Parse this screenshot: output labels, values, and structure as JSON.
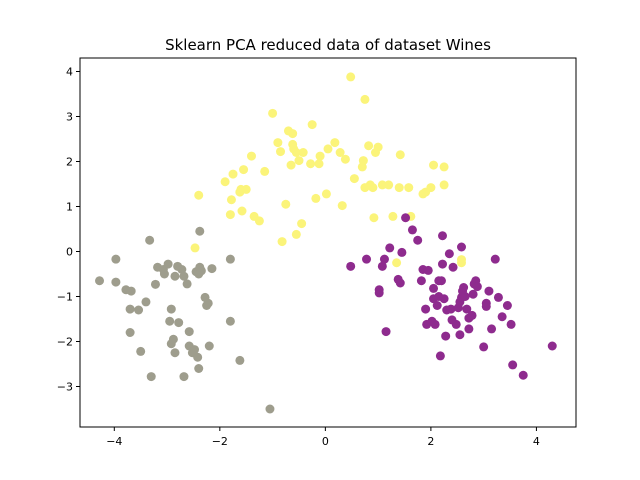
{
  "chart_data": {
    "type": "scatter",
    "title": "Sklearn PCA reduced data of dataset Wines",
    "xlabel": "",
    "ylabel": "",
    "xlim": [
      -4.65,
      4.75
    ],
    "ylim": [
      -3.9,
      4.3
    ],
    "xticks": [
      -4,
      -2,
      0,
      2,
      4
    ],
    "yticks": [
      -3,
      -2,
      -1,
      0,
      1,
      2,
      3,
      4
    ],
    "xtick_labels": [
      "−4",
      "−2",
      "0",
      "2",
      "4"
    ],
    "ytick_labels": [
      "−3",
      "−2",
      "−1",
      "0",
      "1",
      "2",
      "3",
      "4"
    ],
    "grid": false,
    "legend": false,
    "series": [
      {
        "color": "#9e9d8d",
        "points": [
          [
            -4.28,
            -0.65
          ],
          [
            -3.97,
            -0.68
          ],
          [
            -3.97,
            -0.17
          ],
          [
            -3.78,
            -0.85
          ],
          [
            -3.7,
            -1.28
          ],
          [
            -3.68,
            -0.88
          ],
          [
            -3.7,
            -1.8
          ],
          [
            -3.54,
            -1.3
          ],
          [
            -3.5,
            -2.22
          ],
          [
            -3.4,
            -1.12
          ],
          [
            -3.33,
            0.25
          ],
          [
            -3.3,
            -2.78
          ],
          [
            -3.22,
            -0.73
          ],
          [
            -3.18,
            -0.35
          ],
          [
            -3.07,
            -0.4
          ],
          [
            -3.05,
            -0.5
          ],
          [
            -2.98,
            -0.28
          ],
          [
            -2.95,
            -1.55
          ],
          [
            -2.92,
            -1.28
          ],
          [
            -2.92,
            -2.05
          ],
          [
            -2.88,
            -1.95
          ],
          [
            -2.85,
            -0.55
          ],
          [
            -2.85,
            -2.25
          ],
          [
            -2.8,
            -0.33
          ],
          [
            -2.78,
            -1.58
          ],
          [
            -2.72,
            -0.4
          ],
          [
            -2.68,
            -0.55
          ],
          [
            -2.68,
            -2.78
          ],
          [
            -2.62,
            -0.72
          ],
          [
            -2.58,
            -1.78
          ],
          [
            -2.58,
            -2.1
          ],
          [
            -2.52,
            -2.25
          ],
          [
            -2.48,
            -2.18
          ],
          [
            -2.45,
            -0.45
          ],
          [
            -2.42,
            -2.35
          ],
          [
            -2.4,
            -0.5
          ],
          [
            -2.4,
            -2.6
          ],
          [
            -2.38,
            -0.35
          ],
          [
            -2.35,
            -0.43
          ],
          [
            -2.38,
            0.45
          ],
          [
            -2.28,
            -1.02
          ],
          [
            -2.25,
            -1.2
          ],
          [
            -2.22,
            -1.15
          ],
          [
            -2.2,
            -2.1
          ],
          [
            -2.15,
            -0.38
          ],
          [
            -1.8,
            -1.55
          ],
          [
            -1.8,
            -0.17
          ],
          [
            -1.62,
            -2.42
          ],
          [
            -1.05,
            -3.5
          ]
        ]
      },
      {
        "color": "#fbf47a",
        "points": [
          [
            -2.47,
            0.08
          ],
          [
            -2.4,
            1.25
          ],
          [
            -1.9,
            1.55
          ],
          [
            -1.8,
            0.82
          ],
          [
            -1.78,
            1.15
          ],
          [
            -1.75,
            1.72
          ],
          [
            -1.62,
            1.32
          ],
          [
            -1.6,
            1.38
          ],
          [
            -1.58,
            0.9
          ],
          [
            -1.55,
            1.82
          ],
          [
            -1.5,
            1.38
          ],
          [
            -1.4,
            2.12
          ],
          [
            -1.35,
            0.78
          ],
          [
            -1.25,
            0.68
          ],
          [
            -1.15,
            1.78
          ],
          [
            -1.0,
            3.07
          ],
          [
            -0.9,
            2.42
          ],
          [
            -0.85,
            2.22
          ],
          [
            -0.82,
            0.22
          ],
          [
            -0.75,
            1.05
          ],
          [
            -0.7,
            2.68
          ],
          [
            -0.65,
            1.92
          ],
          [
            -0.62,
            2.62
          ],
          [
            -0.62,
            2.38
          ],
          [
            -0.6,
            2.28
          ],
          [
            -0.55,
            0.38
          ],
          [
            -0.55,
            2.2
          ],
          [
            -0.5,
            2.02
          ],
          [
            -0.45,
            0.62
          ],
          [
            -0.42,
            2.2
          ],
          [
            -0.28,
            1.95
          ],
          [
            -0.25,
            2.82
          ],
          [
            -0.18,
            1.18
          ],
          [
            -0.12,
            1.95
          ],
          [
            -0.1,
            2.12
          ],
          [
            0.02,
            1.28
          ],
          [
            0.05,
            2.28
          ],
          [
            0.18,
            2.42
          ],
          [
            0.28,
            2.2
          ],
          [
            0.32,
            1.02
          ],
          [
            0.38,
            2.05
          ],
          [
            0.48,
            3.88
          ],
          [
            0.55,
            1.62
          ],
          [
            0.7,
            1.88
          ],
          [
            0.72,
            2.02
          ],
          [
            0.75,
            1.42
          ],
          [
            0.75,
            3.38
          ],
          [
            0.82,
            2.35
          ],
          [
            0.85,
            1.48
          ],
          [
            0.9,
            1.42
          ],
          [
            0.92,
            0.75
          ],
          [
            0.95,
            2.2
          ],
          [
            1.0,
            2.32
          ],
          [
            1.08,
            1.48
          ],
          [
            1.2,
            1.48
          ],
          [
            1.28,
            0.78
          ],
          [
            1.35,
            -0.25
          ],
          [
            1.4,
            1.42
          ],
          [
            1.42,
            2.15
          ],
          [
            1.58,
            1.42
          ],
          [
            1.62,
            0.78
          ],
          [
            1.85,
            1.28
          ],
          [
            1.9,
            1.32
          ],
          [
            2.0,
            1.42
          ],
          [
            2.05,
            1.92
          ],
          [
            2.25,
            1.88
          ],
          [
            2.25,
            1.48
          ],
          [
            2.58,
            -0.18
          ],
          [
            2.58,
            -0.25
          ]
        ]
      },
      {
        "color": "#8e2b8e",
        "points": [
          [
            0.48,
            -0.33
          ],
          [
            0.78,
            -0.17
          ],
          [
            1.08,
            -0.33
          ],
          [
            1.12,
            -0.17
          ],
          [
            1.15,
            -1.78
          ],
          [
            1.22,
            0.08
          ],
          [
            1.02,
            -0.85
          ],
          [
            1.02,
            -0.92
          ],
          [
            1.38,
            -0.62
          ],
          [
            1.42,
            -0.7
          ],
          [
            1.45,
            -0.02
          ],
          [
            1.52,
            0.75
          ],
          [
            1.65,
            0.48
          ],
          [
            1.75,
            0.25
          ],
          [
            1.82,
            -0.65
          ],
          [
            1.85,
            -0.4
          ],
          [
            1.9,
            -1.28
          ],
          [
            1.92,
            -1.62
          ],
          [
            1.95,
            -0.42
          ],
          [
            2.02,
            -1.55
          ],
          [
            2.05,
            -0.82
          ],
          [
            2.05,
            -1.05
          ],
          [
            2.08,
            -1.62
          ],
          [
            2.12,
            -1.2
          ],
          [
            2.15,
            -0.65
          ],
          [
            2.15,
            -1.0
          ],
          [
            2.18,
            -2.32
          ],
          [
            2.2,
            -0.65
          ],
          [
            2.22,
            0.35
          ],
          [
            2.22,
            -0.28
          ],
          [
            2.25,
            -1.05
          ],
          [
            2.28,
            -1.88
          ],
          [
            2.3,
            -1.3
          ],
          [
            2.35,
            -0.05
          ],
          [
            2.38,
            -1.28
          ],
          [
            2.4,
            -1.52
          ],
          [
            2.42,
            -0.35
          ],
          [
            2.48,
            -1.62
          ],
          [
            2.52,
            -1.25
          ],
          [
            2.55,
            -1.12
          ],
          [
            2.55,
            -1.85
          ],
          [
            2.58,
            -1.02
          ],
          [
            2.58,
            0.1
          ],
          [
            2.6,
            -0.88
          ],
          [
            2.65,
            -1.0
          ],
          [
            2.62,
            -0.8
          ],
          [
            2.68,
            -1.28
          ],
          [
            2.72,
            -1.72
          ],
          [
            2.72,
            -1.48
          ],
          [
            2.78,
            -1.42
          ],
          [
            2.8,
            -0.95
          ],
          [
            2.82,
            -0.72
          ],
          [
            2.85,
            -0.65
          ],
          [
            2.88,
            -0.78
          ],
          [
            3.0,
            -2.12
          ],
          [
            3.05,
            -1.15
          ],
          [
            3.05,
            -1.22
          ],
          [
            3.1,
            -0.88
          ],
          [
            3.15,
            -1.72
          ],
          [
            3.22,
            -0.17
          ],
          [
            3.28,
            -1.02
          ],
          [
            3.35,
            -1.45
          ],
          [
            3.45,
            -1.2
          ],
          [
            3.52,
            -1.62
          ],
          [
            3.55,
            -2.52
          ],
          [
            3.75,
            -2.75
          ],
          [
            4.3,
            -2.1
          ]
        ]
      }
    ]
  }
}
